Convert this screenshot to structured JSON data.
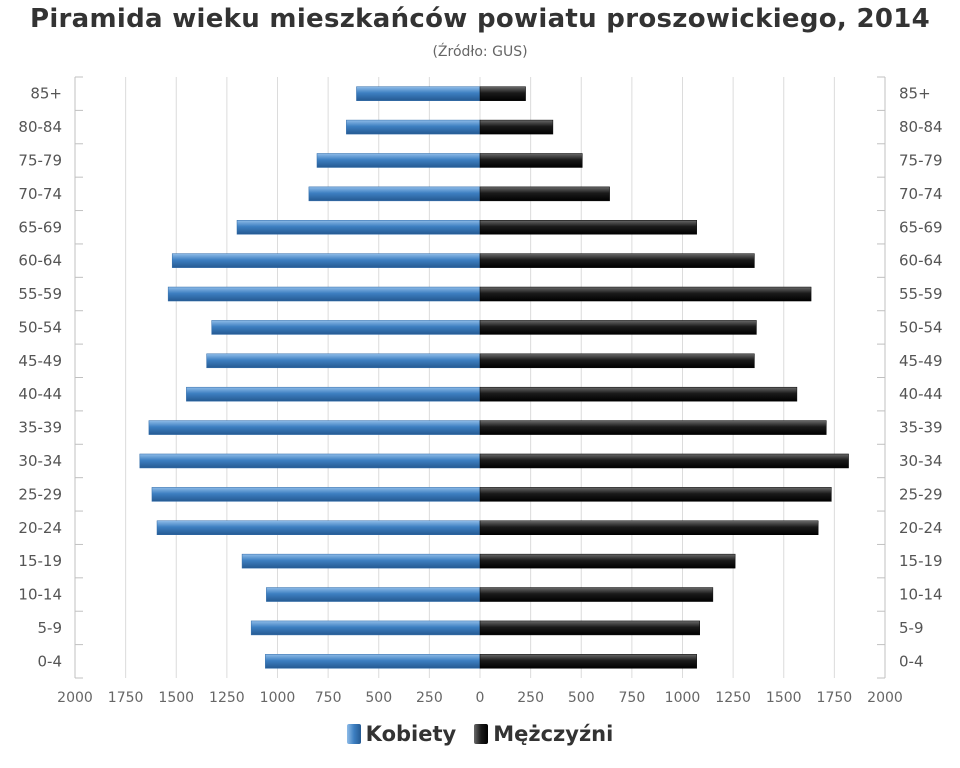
{
  "chart_data": {
    "type": "bar",
    "orientation": "horizontal-population-pyramid",
    "title": "Piramida wieku mieszkańców powiatu proszowickiego, 2014",
    "subtitle": "(Źródło: GUS)",
    "categories": [
      "85+",
      "80-84",
      "75-79",
      "70-74",
      "65-69",
      "60-64",
      "55-59",
      "50-54",
      "45-49",
      "40-44",
      "35-39",
      "30-34",
      "25-29",
      "20-24",
      "15-19",
      "10-14",
      "5-9",
      "0-4"
    ],
    "series": [
      {
        "name": "Kobiety",
        "color": "#3d7fc1",
        "values": [
          610,
          660,
          805,
          845,
          1200,
          1520,
          1540,
          1325,
          1350,
          1450,
          1635,
          1680,
          1620,
          1595,
          1175,
          1055,
          1130,
          1060
        ]
      },
      {
        "name": "Mężczyźni",
        "color": "#1a1a1a",
        "values": [
          225,
          360,
          505,
          640,
          1070,
          1355,
          1635,
          1365,
          1355,
          1565,
          1710,
          1820,
          1735,
          1670,
          1260,
          1150,
          1085,
          1070
        ]
      }
    ],
    "x_ticks": [
      "2000",
      "1750",
      "1500",
      "1250",
      "1000",
      "750",
      "500",
      "250",
      "0",
      "250",
      "500",
      "750",
      "1000",
      "1250",
      "1500",
      "1750",
      "2000"
    ],
    "xlim": [
      -2000,
      2000
    ],
    "grid": true,
    "legend": "bottom-center"
  }
}
